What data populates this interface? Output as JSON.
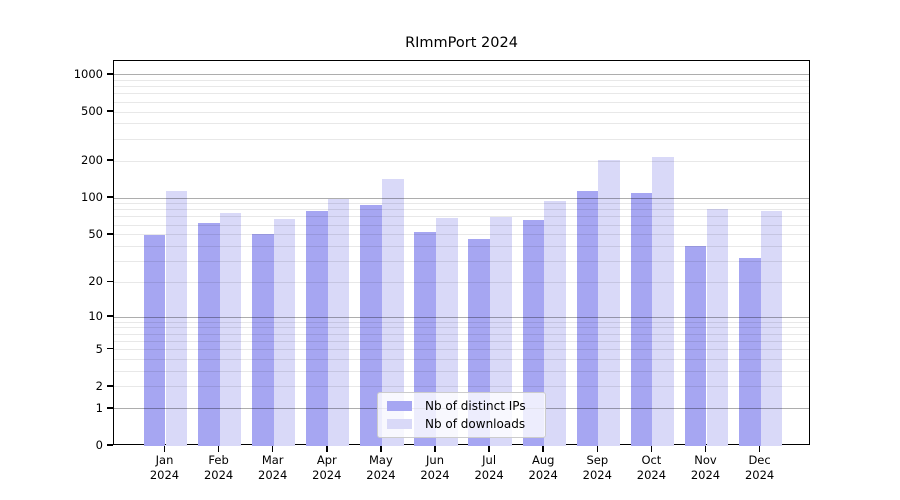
{
  "title": "RImmPort 2024",
  "chart_data": {
    "type": "bar",
    "title": "RImmPort 2024",
    "categories": [
      "Jan",
      "Feb",
      "Mar",
      "Apr",
      "May",
      "Jun",
      "Jul",
      "Aug",
      "Sep",
      "Oct",
      "Nov",
      "Dec"
    ],
    "x_tick_second_line": "2024",
    "series": [
      {
        "name": "Nb of distinct IPs",
        "color": "#a6a6f2",
        "values": [
          50,
          62,
          51,
          78,
          88,
          53,
          46,
          66,
          115,
          110,
          40,
          32
        ]
      },
      {
        "name": "Nb of downloads",
        "color": "#d9d9f8",
        "values": [
          114,
          75,
          67,
          98,
          143,
          69,
          70,
          95,
          205,
          215,
          82,
          79
        ]
      }
    ],
    "xlabel": "",
    "ylabel": "",
    "y_axis": {
      "scale": "log10(v+1)",
      "tick_labels": [
        0,
        1,
        2,
        5,
        10,
        20,
        50,
        100,
        200,
        500,
        1000
      ],
      "ylim": [
        0,
        1290
      ]
    },
    "grid": {
      "major_lines_at": [
        1,
        10,
        100,
        1000
      ],
      "minor_lines_at": [
        2,
        3,
        4,
        5,
        6,
        7,
        8,
        9,
        20,
        30,
        40,
        50,
        60,
        70,
        80,
        90,
        200,
        300,
        400,
        500,
        600,
        700,
        800,
        900
      ],
      "grid_on": true
    },
    "legend": {
      "position": "inside-bottom-center",
      "entries": [
        "Nb of distinct IPs",
        "Nb of downloads"
      ]
    }
  }
}
